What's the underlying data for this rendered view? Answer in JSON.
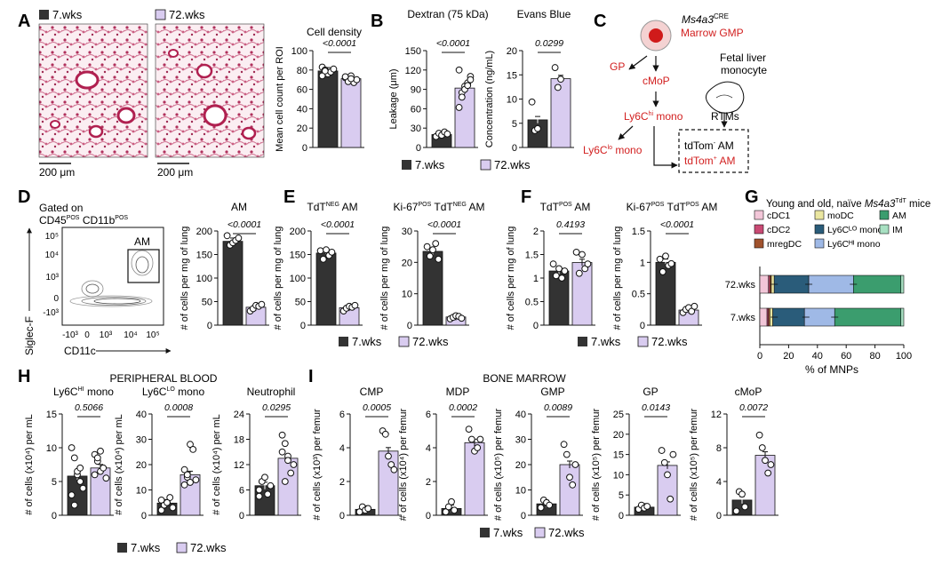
{
  "colors": {
    "young": "#333333",
    "old": "#d9ccf0",
    "red": "#d22020",
    "oldStroke": "#111111"
  },
  "legend": {
    "young": "7.wks",
    "old": "72.wks"
  },
  "panels": {
    "A": {
      "letter": "A",
      "scale_bar": "200 μm",
      "title": "Cell density",
      "ylabel": "Mean cell count per ROI",
      "pval": "<0.0001"
    },
    "B": {
      "letter": "B"
    },
    "C": {
      "letter": "C",
      "title_top": "Ms4a3",
      "title_sup": "CRE",
      "marrow_gmp": "Marrow GMP",
      "gp": "GP",
      "cmop": "cMoP",
      "ly6chi": "Ly6C",
      "ly6chi_sup": "hi",
      "ly6chi_tail": " mono",
      "ly6clo": "Ly6C",
      "ly6clo_sup": "lo",
      "ly6clo_tail": " mono",
      "fetal1": "Fetal liver",
      "fetal2": "monocyte",
      "rtms": "RTMs",
      "tdneg": "tdTom",
      "tdneg_sup": "-",
      "tdneg_tail": " AM",
      "tdpos": "tdTom",
      "tdpos_sup": "+",
      "tdpos_tail": " AM"
    },
    "D": {
      "letter": "D",
      "gated1": "Gated on",
      "gated2": "CD45",
      "gated2_sup": "POS",
      "gated3": " CD11b",
      "gated3_sup": "POS",
      "gate_label": "AM",
      "y_axis": "Siglec-F",
      "x_axis": "CD11c",
      "yticks": [
        "10⁵",
        "10⁴",
        "10³",
        "0",
        "-10³"
      ],
      "xticks": [
        "-10³",
        "0",
        "10³",
        "10⁴",
        "10⁵"
      ]
    },
    "E": {
      "letter": "E"
    },
    "F": {
      "letter": "F"
    },
    "G": {
      "letter": "G",
      "title": "Young and old, naïve ",
      "title_italic": "Ms4a3",
      "title_sup": "TdT",
      "title_tail": " mice",
      "xlabel": "% of MNPs",
      "legend": [
        "cDC1",
        "moDC",
        "AM",
        "cDC2",
        "Ly6Cᴸᴼ mono",
        "IM",
        "mregDC",
        "Ly6Cᴴᴵ mono"
      ]
    },
    "H": {
      "letter": "H",
      "header": "PERIPHERAL BLOOD"
    },
    "I": {
      "letter": "I",
      "header": "BONE MARROW"
    }
  },
  "chart_data": [
    {
      "id": "A",
      "type": "bar",
      "title": "Cell density",
      "categories": [
        "7.wks",
        "72.wks"
      ],
      "values": [
        79,
        71
      ],
      "ylabel": "Mean cell count per ROI",
      "ylim": [
        0,
        100
      ],
      "yticks": [
        0,
        20,
        40,
        60,
        80,
        100
      ],
      "pval": "<0.0001",
      "points": [
        [
          83,
          80,
          76,
          78,
          81,
          74,
          79
        ],
        [
          72,
          69,
          74,
          67,
          70,
          73,
          68,
          71
        ]
      ]
    },
    {
      "id": "B1",
      "type": "bar",
      "title": "Dextran (75 kDa)",
      "categories": [
        "7.wks",
        "72.wks"
      ],
      "values": [
        20,
        92
      ],
      "ylabel": "Leakage (μm)",
      "ylim": [
        0,
        150
      ],
      "yticks": [
        0,
        30,
        60,
        90,
        120,
        150
      ],
      "pval": "<0.0001",
      "points": [
        [
          17,
          22,
          19,
          24,
          21
        ],
        [
          62,
          85,
          95,
          100,
          110,
          120,
          78,
          90,
          96,
          105
        ]
      ]
    },
    {
      "id": "B2",
      "type": "bar",
      "title": "Evans Blue",
      "categories": [
        "7.wks",
        "72.wks"
      ],
      "values": [
        5.7,
        14.2
      ],
      "ylabel": "Concentration (ng/mL)",
      "ylim": [
        0,
        20
      ],
      "yticks": [
        0,
        5,
        10,
        15,
        20
      ],
      "pval": "0.0299",
      "points": [
        [
          9.4,
          3.5,
          3.9
        ],
        [
          16.5,
          12.4,
          14.1
        ]
      ]
    },
    {
      "id": "D",
      "type": "bar",
      "title": "AM",
      "categories": [
        "7.wks",
        "72.wks"
      ],
      "values": [
        178,
        38
      ],
      "ylabel": "# of cells per mg of lung",
      "ylim": [
        0,
        200
      ],
      "yticks": [
        0,
        50,
        100,
        150,
        200
      ],
      "pval": "<0.0001",
      "points": [
        [
          190,
          170,
          175,
          180,
          185
        ],
        [
          30,
          35,
          42,
          40,
          44
        ]
      ]
    },
    {
      "id": "E1",
      "type": "bar",
      "title": "TdT",
      "title_sup": "NEG",
      "title_tail": " AM",
      "categories": [
        "7.wks",
        "72.wks"
      ],
      "values": [
        153,
        37
      ],
      "ylabel": "# of cells per mg of lung",
      "ylim": [
        0,
        200
      ],
      "yticks": [
        0,
        50,
        100,
        150,
        200
      ],
      "pval": "<0.0001",
      "points": [
        [
          158,
          140,
          160,
          148,
          155
        ],
        [
          30,
          36,
          40,
          38,
          42
        ]
      ]
    },
    {
      "id": "E2",
      "type": "bar",
      "title": "Ki-67",
      "title_sup": "POS",
      "title_mid": " TdT",
      "title_sup2": "NEG",
      "title_tail": " AM",
      "categories": [
        "7.wks",
        "72.wks"
      ],
      "values": [
        23.5,
        2.6
      ],
      "ylabel": "# of cells per mg of lung",
      "ylim": [
        0,
        30
      ],
      "yticks": [
        0,
        10,
        20,
        30
      ],
      "pval": "<0.0001",
      "points": [
        [
          25,
          22,
          24,
          26,
          21
        ],
        [
          2.0,
          2.5,
          3.0,
          2.8,
          2.2
        ]
      ]
    },
    {
      "id": "F1",
      "type": "bar",
      "title": "TdT",
      "title_sup": "POS",
      "title_tail": " AM",
      "categories": [
        "7.wks",
        "72.wks"
      ],
      "values": [
        1.15,
        1.33
      ],
      "ylabel": "# of cells per mg of lung",
      "ylim": [
        0,
        2.0
      ],
      "yticks": [
        0,
        0.5,
        1.0,
        1.5,
        2.0
      ],
      "pval": "0.4193",
      "points": [
        [
          1.3,
          1.05,
          1.2,
          1.0,
          1.15
        ],
        [
          1.55,
          1.1,
          1.5,
          1.2,
          1.3
        ]
      ]
    },
    {
      "id": "F2",
      "type": "bar",
      "title": "Ki-67",
      "title_sup": "POS",
      "title_mid": " TdT",
      "title_sup2": "POS",
      "title_tail": " AM",
      "categories": [
        "7.wks",
        "72.wks"
      ],
      "values": [
        1.0,
        0.24
      ],
      "ylabel": "# of cells per mg of lung",
      "ylim": [
        0,
        1.5
      ],
      "yticks": [
        0,
        0.5,
        1.0,
        1.5
      ],
      "pval": "<0.0001",
      "points": [
        [
          1.05,
          0.85,
          1.1,
          0.95,
          0.98
        ],
        [
          0.2,
          0.25,
          0.28,
          0.22,
          0.3
        ]
      ]
    },
    {
      "id": "G",
      "type": "bar",
      "orientation": "horizontal-stacked",
      "categories": [
        "72.wks",
        "7.wks"
      ],
      "xlabel": "% of MNPs",
      "xlim": [
        0,
        100
      ],
      "xticks": [
        0,
        20,
        40,
        60,
        80,
        100
      ],
      "series": [
        {
          "name": "cDC1",
          "color": "#f2c6d8",
          "values": [
            6,
            5
          ]
        },
        {
          "name": "cDC2",
          "color": "#c94a74",
          "values": [
            1,
            1
          ]
        },
        {
          "name": "mregDC",
          "color": "#a0522d",
          "values": [
            1,
            1
          ]
        },
        {
          "name": "moDC",
          "color": "#eae6a0",
          "values": [
            2,
            2
          ]
        },
        {
          "name": "Ly6Cᴸᴼ mono",
          "color": "#2a5c7a",
          "values": [
            24,
            22
          ]
        },
        {
          "name": "Ly6Cᴴᴵ mono",
          "color": "#9fb9e6",
          "values": [
            31,
            21
          ]
        },
        {
          "name": "AM",
          "color": "#3b9d6e",
          "values": [
            33,
            46
          ]
        },
        {
          "name": "IM",
          "color": "#a8e0c2",
          "values": [
            2,
            2
          ]
        }
      ]
    },
    {
      "id": "H1",
      "type": "bar",
      "title": "Ly6C",
      "title_sup": "HI",
      "title_tail": " mono",
      "categories": [
        "7.wks",
        "72.wks"
      ],
      "values": [
        5.8,
        7.0
      ],
      "ylabel": "# of cells (x10⁴) per mL",
      "ylim": [
        0,
        15
      ],
      "yticks": [
        0,
        5,
        10,
        15
      ],
      "pval": "0.5066",
      "points": [
        [
          10,
          8.5,
          6,
          5,
          4,
          3,
          1.5,
          6.5,
          7
        ],
        [
          9,
          8,
          6.5,
          7,
          5.5,
          6,
          8.5,
          9.5
        ]
      ]
    },
    {
      "id": "H2",
      "type": "bar",
      "title": "Ly6C",
      "title_sup": "LO",
      "title_tail": " mono",
      "categories": [
        "7.wks",
        "72.wks"
      ],
      "values": [
        4.8,
        16.0
      ],
      "ylabel": "# of cells (x10⁴) per mL",
      "ylim": [
        0,
        40
      ],
      "yticks": [
        0,
        10,
        20,
        30,
        40
      ],
      "pval": "0.0008",
      "points": [
        [
          2,
          4,
          5,
          7,
          3,
          6,
          4,
          5
        ],
        [
          12,
          15,
          28,
          26,
          14,
          18,
          16,
          13
        ]
      ]
    },
    {
      "id": "H3",
      "type": "bar",
      "title": "Neutrophil",
      "categories": [
        "7.wks",
        "72.wks"
      ],
      "values": [
        7.0,
        13.5
      ],
      "ylabel": "# of cells (x10⁴) per mL",
      "ylim": [
        0,
        24
      ],
      "yticks": [
        0,
        6,
        12,
        18,
        24
      ],
      "pval": "0.0295",
      "points": [
        [
          6,
          8,
          9,
          5,
          7,
          4.5
        ],
        [
          19,
          17,
          14,
          10,
          12,
          15,
          8,
          13
        ]
      ]
    },
    {
      "id": "I1",
      "type": "bar",
      "title": "CMP",
      "categories": [
        "7.wks",
        "72.wks"
      ],
      "values": [
        0.35,
        3.8
      ],
      "ylabel": "# of cells (x10³) per femur",
      "ylim": [
        0,
        6
      ],
      "yticks": [
        0,
        2,
        4,
        6
      ],
      "pval": "0.0005",
      "points": [
        [
          0.2,
          0.5,
          0.3,
          0.4
        ],
        [
          5.0,
          4.8,
          3.5,
          3.0,
          2.7
        ]
      ]
    },
    {
      "id": "I2",
      "type": "bar",
      "title": "MDP",
      "categories": [
        "7.wks",
        "72.wks"
      ],
      "values": [
        0.4,
        4.3
      ],
      "ylabel": "# of cells (x10⁴) per femur",
      "ylim": [
        0,
        6
      ],
      "yticks": [
        0,
        2,
        4,
        6
      ],
      "pval": "0.0002",
      "points": [
        [
          0.2,
          0.5,
          0.8,
          0.3
        ],
        [
          5.1,
          4.5,
          3.8,
          4.0,
          4.5
        ]
      ]
    },
    {
      "id": "I3",
      "type": "bar",
      "title": "GMP",
      "categories": [
        "7.wks",
        "72.wks"
      ],
      "values": [
        4.5,
        20
      ],
      "ylabel": "# of cells (x10⁵) per femur",
      "ylim": [
        0,
        40
      ],
      "yticks": [
        0,
        10,
        20,
        30,
        40
      ],
      "pval": "0.0089",
      "points": [
        [
          3,
          6,
          5,
          4
        ],
        [
          28,
          24,
          15,
          12,
          20
        ]
      ]
    },
    {
      "id": "I4",
      "type": "bar",
      "title": "GP",
      "categories": [
        "7.wks",
        "72.wks"
      ],
      "values": [
        2.0,
        12.3
      ],
      "ylabel": "# of cells (x10⁵) per femur",
      "ylim": [
        0,
        25
      ],
      "yticks": [
        0,
        5,
        10,
        15,
        20,
        25
      ],
      "pval": "0.0143",
      "points": [
        [
          1.5,
          2.5,
          1.8,
          2.2
        ],
        [
          16,
          13,
          10,
          4,
          15
        ]
      ]
    },
    {
      "id": "I5",
      "type": "bar",
      "title": "cMoP",
      "categories": [
        "7.wks",
        "72.wks"
      ],
      "values": [
        1.8,
        7.1
      ],
      "ylabel": "# of cells (x10⁵) per femur",
      "ylim": [
        0,
        12
      ],
      "yticks": [
        0,
        4,
        8,
        12
      ],
      "pval": "0.0072",
      "points": [
        [
          0.5,
          2.8,
          2.5,
          1.0
        ],
        [
          9.5,
          8.0,
          6.5,
          5.0,
          6.0
        ]
      ]
    }
  ]
}
